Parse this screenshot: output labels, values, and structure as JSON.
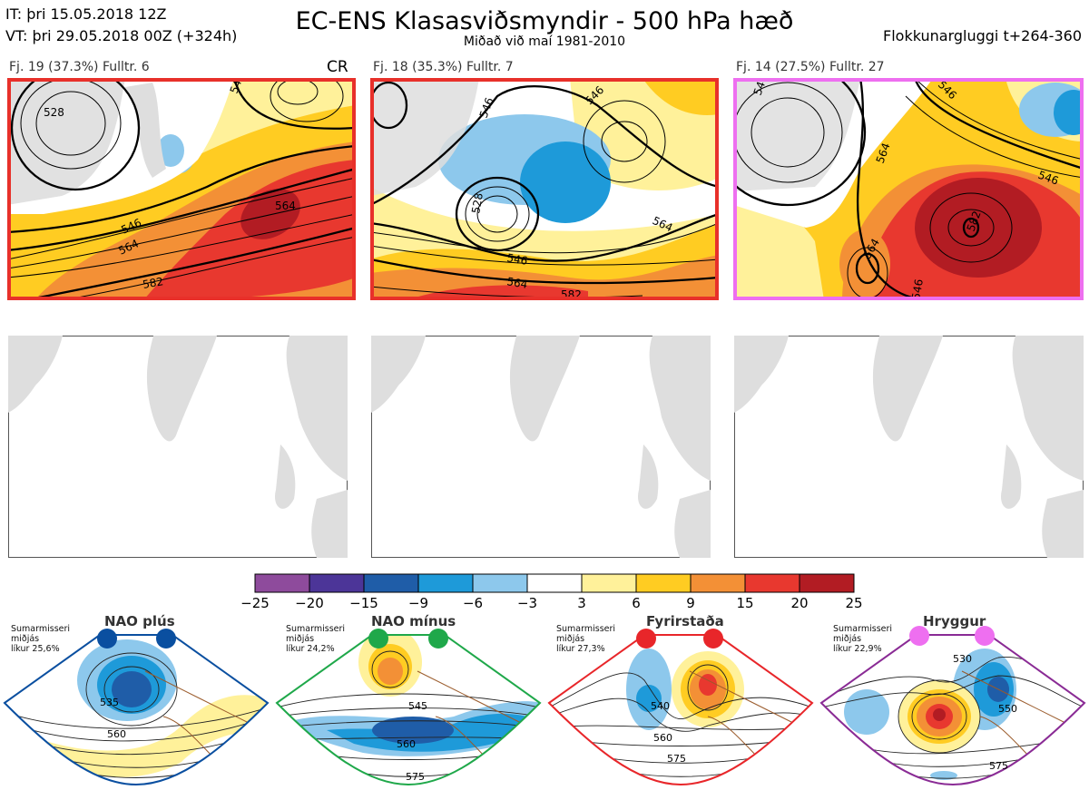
{
  "header": {
    "it_line": "IT: þri 15.05.2018 12Z",
    "vt_line": "VT: þri 29.05.2018 00Z  (+324h)",
    "title": "EC-ENS Klasasviðsmyndir - 500 hPa hæð",
    "subtitle": "Miðað við maí 1981-2010",
    "window": "Flokkunargluggi t+264-360"
  },
  "panels": [
    {
      "label": "Fj. 19 (37.3%)   Fulltr. 6",
      "badge": "CR",
      "border_color": "#e8302a",
      "contour_labels": [
        "528",
        "546",
        "564",
        "582",
        "546"
      ]
    },
    {
      "label": "Fj. 18 (35.3%)   Fulltr. 7",
      "badge": "",
      "border_color": "#e8302a",
      "contour_labels": [
        "546",
        "528",
        "546",
        "564",
        "546",
        "564",
        "582"
      ]
    },
    {
      "label": "Fj. 14 (27.5%)   Fulltr. 27",
      "badge": "",
      "border_color": "#ee6ff0",
      "contour_labels": [
        "546",
        "546",
        "564",
        "582",
        "546",
        "564",
        "546"
      ]
    }
  ],
  "colorbar": {
    "colors": [
      "#8e4b9c",
      "#4c3598",
      "#1f5da8",
      "#1e9ad9",
      "#8dc8ec",
      "#ffffff",
      "#fff19a",
      "#ffcc22",
      "#f39036",
      "#e8382f",
      "#b21c23"
    ],
    "ticks": [
      "−25",
      "−20",
      "−15",
      "−9",
      "−6",
      "−3",
      "3",
      "6",
      "9",
      "15",
      "20",
      "25"
    ]
  },
  "regimes": [
    {
      "title": "NAO plús",
      "season": "Sumarmisseri",
      "mid": "miðjás",
      "prob": "líkur 25,6%",
      "color": "#0a4fa0",
      "labels": [
        "535",
        "560"
      ]
    },
    {
      "title": "NAO mínus",
      "season": "Sumarmisseri",
      "mid": "miðjás",
      "prob": "líkur 24,2%",
      "color": "#1fa84a",
      "labels": [
        "545",
        "560",
        "575"
      ]
    },
    {
      "title": "Fyrirstaða",
      "season": "Sumarmisseri",
      "mid": "miðjás",
      "prob": "líkur 27,3%",
      "color": "#e8262a",
      "labels": [
        "540",
        "560",
        "575"
      ]
    },
    {
      "title": "Hryggur",
      "season": "Sumarmisseri",
      "mid": "miðjás",
      "prob": "líkur 22,9%",
      "color": "#8a2b95",
      "labels": [
        "530",
        "550",
        "575"
      ]
    }
  ]
}
